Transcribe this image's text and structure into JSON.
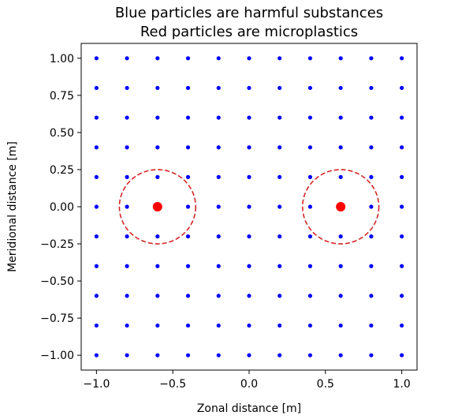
{
  "chart_data": {
    "type": "scatter",
    "title": [
      "Blue particles are harmful substances",
      "Red particles are microplastics"
    ],
    "xlabel": "Zonal distance [m]",
    "ylabel": "Meridional distance [m]",
    "xlim": [
      -1.1,
      1.1
    ],
    "ylim": [
      -1.1,
      1.1
    ],
    "xticks": [
      -1.0,
      -0.5,
      0.0,
      0.5,
      1.0
    ],
    "xtick_labels": [
      "−1.0",
      "−0.5",
      "0.0",
      "0.5",
      "1.0"
    ],
    "yticks": [
      1.0,
      0.75,
      0.5,
      0.25,
      0.0,
      -0.25,
      -0.5,
      -0.75,
      -1.0
    ],
    "ytick_labels": [
      "1.00",
      "0.75",
      "0.50",
      "0.25",
      "0.00",
      "−0.25",
      "−0.50",
      "−0.75",
      "−1.00"
    ],
    "grid": false,
    "series": [
      {
        "color": "#0000ff",
        "x": [
          -1.0,
          -0.8,
          -0.6,
          -0.4,
          -0.2,
          0.0,
          0.2,
          0.4,
          0.6,
          0.8,
          1.0
        ],
        "y": [
          -1.0,
          -0.8,
          -0.6,
          -0.4,
          -0.2,
          0.0,
          0.2,
          0.4,
          0.6,
          0.8,
          1.0
        ],
        "layout": "grid"
      },
      {
        "color": "#ff0000",
        "points": [
          [
            -0.6,
            0.0
          ],
          [
            0.6,
            0.0
          ]
        ]
      }
    ],
    "circles": [
      {
        "cx": -0.6,
        "cy": 0.0,
        "r": 0.25,
        "color": "#d62728",
        "style": "dashed"
      },
      {
        "cx": 0.6,
        "cy": 0.0,
        "r": 0.25,
        "color": "#d62728",
        "style": "dashed"
      }
    ]
  }
}
